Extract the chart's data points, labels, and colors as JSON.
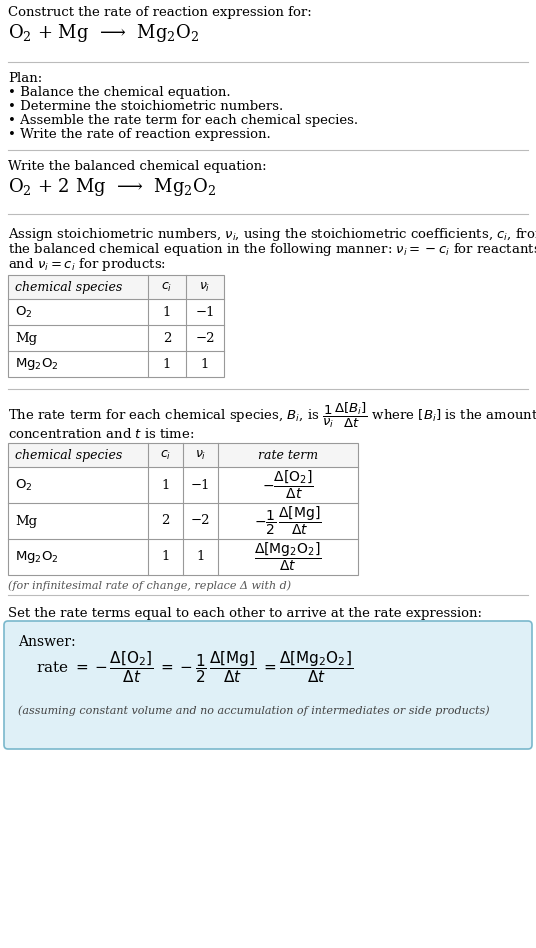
{
  "title_text": "Construct the rate of reaction expression for:",
  "plan_header": "Plan:",
  "plan_items": [
    "• Balance the chemical equation.",
    "• Determine the stoichiometric numbers.",
    "• Assemble the rate term for each chemical species.",
    "• Write the rate of reaction expression."
  ],
  "balanced_header": "Write the balanced chemical equation:",
  "table1_headers": [
    "chemical species",
    "c_i",
    "ν_i"
  ],
  "table1_rows": [
    [
      "O₂",
      "1",
      "−1"
    ],
    [
      "Mg",
      "2",
      "−2"
    ],
    [
      "Mg₂O₂",
      "1",
      "1"
    ]
  ],
  "table2_headers": [
    "chemical species",
    "c_i",
    "ν_i",
    "rate term"
  ],
  "table2_rows": [
    [
      "O₂",
      "1",
      "−1"
    ],
    [
      "Mg",
      "2",
      "−2"
    ],
    [
      "Mg₂O₂",
      "1",
      "1"
    ]
  ],
  "infinitesimal_note": "(for infinitesimal rate of change, replace Δ with d)",
  "set_rate_header": "Set the rate terms equal to each other to arrive at the rate expression:",
  "answer_box_bg": "#dff0f7",
  "answer_box_border": "#7ab8cc",
  "bg_color": "#ffffff",
  "separator_color": "#bbbbbb"
}
